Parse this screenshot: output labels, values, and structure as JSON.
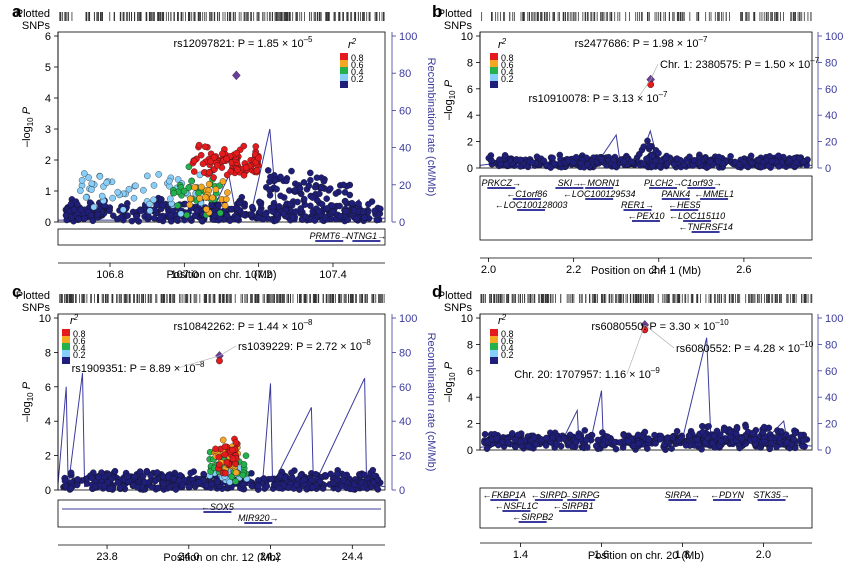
{
  "figure": {
    "colors": {
      "navy": "#1f1f7a",
      "light_blue": "#87cefa",
      "green": "#22b14c",
      "orange": "#f5a623",
      "red": "#e41a1c",
      "purple": "#6a3d9a",
      "rate_line": "#3b3b9e",
      "axis_right": "#3b3b9e"
    },
    "plotted_snps_label": [
      "Plotted",
      "SNPs"
    ],
    "ylabel_left": "–log10 P",
    "ylabel_right": "Recombination rate (cM/Mb)",
    "legend": {
      "title": "r2",
      "levels": [
        {
          "label": "0.8",
          "color": "#e41a1c"
        },
        {
          "label": "0.6",
          "color": "#f5a623"
        },
        {
          "label": "0.4",
          "color": "#22b14c"
        },
        {
          "label": "0.2",
          "color": "#87cefa"
        },
        {
          "label": "",
          "color": "#1f1f7a"
        }
      ]
    }
  },
  "chart_data": [
    {
      "panel": "a",
      "type": "scatter",
      "xlabel": "Position on chr. 1 (Mb)",
      "xlim": [
        106.66,
        107.54
      ],
      "xticks": [
        "106.8",
        "107.0",
        "107.2",
        "107.4"
      ],
      "xtick_values": [
        106.8,
        107.0,
        107.2,
        107.4
      ],
      "ylim": [
        0,
        6
      ],
      "yticks": [
        0,
        1,
        2,
        3,
        4,
        5,
        6
      ],
      "ylim_right": [
        0,
        100
      ],
      "yticks_right": [
        0,
        20,
        40,
        60,
        80,
        100
      ],
      "lead_snp": {
        "x": 107.14,
        "y": 4.73
      },
      "annotations": [
        {
          "text": "rs12097821: P = 1.85 × 10–5",
          "anchor": "top-center"
        }
      ],
      "genes": [
        {
          "label": "PRMT6→",
          "x": 107.39,
          "row": 0
        },
        {
          "label": "NTNG1→",
          "x": 107.49,
          "row": 0
        }
      ],
      "clusters": [
        {
          "x_range": [
            106.68,
            107.53
          ],
          "y_mean": 0.3,
          "y_spread": 0.35,
          "n": 420,
          "r2_class": "navy"
        },
        {
          "x_range": [
            106.72,
            107.05
          ],
          "y_mean": 1.0,
          "y_spread": 0.55,
          "n": 60,
          "r2_class": "light_blue"
        },
        {
          "x_range": [
            106.96,
            107.1
          ],
          "y_mean": 1.0,
          "y_spread": 0.7,
          "n": 30,
          "r2_class": "green"
        },
        {
          "x_range": [
            107.0,
            107.12
          ],
          "y_mean": 0.8,
          "y_spread": 0.6,
          "n": 20,
          "r2_class": "orange"
        },
        {
          "x_range": [
            107.02,
            107.2
          ],
          "y_mean": 1.9,
          "y_spread": 0.45,
          "n": 95,
          "r2_class": "red"
        },
        {
          "x_range": [
            107.22,
            107.45
          ],
          "y_mean": 1.1,
          "y_spread": 0.5,
          "n": 70,
          "r2_class": "navy"
        }
      ],
      "recomb": [
        [
          106.66,
          1
        ],
        [
          106.9,
          1
        ],
        [
          107.03,
          5
        ],
        [
          107.08,
          8
        ],
        [
          107.12,
          25
        ],
        [
          107.14,
          3
        ],
        [
          107.18,
          5
        ],
        [
          107.23,
          50
        ],
        [
          107.25,
          3
        ],
        [
          107.3,
          6
        ],
        [
          107.34,
          3
        ],
        [
          107.38,
          8
        ],
        [
          107.42,
          4
        ],
        [
          107.47,
          12
        ],
        [
          107.49,
          2
        ],
        [
          107.54,
          2
        ]
      ],
      "snp_ticks": 260
    },
    {
      "panel": "b",
      "type": "scatter",
      "xlabel": "Position on chr. 1 (Mb)",
      "xlim": [
        1.98,
        2.76
      ],
      "xticks": [
        "2.0",
        "2.2",
        "2.4",
        "2.6"
      ],
      "xtick_values": [
        2.0,
        2.2,
        2.4,
        2.6
      ],
      "ylim": [
        0,
        10
      ],
      "yticks": [
        0,
        2,
        4,
        6,
        8,
        10
      ],
      "ylim_right": [
        0,
        100
      ],
      "yticks_right": [
        0,
        20,
        40,
        60,
        80,
        100
      ],
      "lead_snp": {
        "x": 2.381,
        "y": 6.7
      },
      "annotations": [
        {
          "text": "rs2477686: P = 1.98 × 10–7",
          "anchor": "top-center"
        },
        {
          "text": "Chr. 1: 2380575: P = 1.50 × 10–7",
          "anchor": "right"
        },
        {
          "text": "rs10910078: P = 3.13 × 10–7",
          "anchor": "left"
        }
      ],
      "genes": [
        {
          "label": "PRKCZ→",
          "x": 2.03,
          "row": 0
        },
        {
          "label": "SKI→",
          "x": 2.19,
          "row": 0
        },
        {
          "label": "←MORN1",
          "x": 2.26,
          "row": 0
        },
        {
          "label": "PLCH2→",
          "x": 2.41,
          "row": 0
        },
        {
          "label": "C1orf93→",
          "x": 2.5,
          "row": 0
        },
        {
          "label": "←C1orf86",
          "x": 2.09,
          "row": 1
        },
        {
          "label": "←LOC100129534",
          "x": 2.26,
          "row": 1
        },
        {
          "label": "PANK4",
          "x": 2.44,
          "row": 1
        },
        {
          "label": "←MMEL1",
          "x": 2.53,
          "row": 1
        },
        {
          "label": "←LOC100128003",
          "x": 2.1,
          "row": 2
        },
        {
          "label": "RER1→",
          "x": 2.35,
          "row": 2
        },
        {
          "label": "←HES5",
          "x": 2.46,
          "row": 2
        },
        {
          "label": "←PEX10",
          "x": 2.37,
          "row": 3
        },
        {
          "label": "←LOC115110",
          "x": 2.49,
          "row": 3
        },
        {
          "label": "←TNFRSF14",
          "x": 2.51,
          "row": 4
        }
      ],
      "clusters": [
        {
          "x_range": [
            2.0,
            2.75
          ],
          "y_mean": 0.45,
          "y_spread": 0.45,
          "n": 420,
          "r2_class": "navy"
        },
        {
          "x_range": [
            2.36,
            2.4
          ],
          "y_mean": 1.5,
          "y_spread": 0.9,
          "n": 10,
          "r2_class": "navy"
        }
      ],
      "recomb": [
        [
          1.98,
          2
        ],
        [
          2.05,
          5
        ],
        [
          2.1,
          3
        ],
        [
          2.2,
          4
        ],
        [
          2.26,
          6
        ],
        [
          2.3,
          25
        ],
        [
          2.31,
          2
        ],
        [
          2.36,
          10
        ],
        [
          2.38,
          28
        ],
        [
          2.4,
          3
        ],
        [
          2.45,
          6
        ],
        [
          2.5,
          4
        ],
        [
          2.55,
          3
        ],
        [
          2.62,
          5
        ],
        [
          2.7,
          3
        ],
        [
          2.76,
          2
        ]
      ],
      "snp_ticks": 180
    },
    {
      "panel": "c",
      "type": "scatter",
      "xlabel": "Position on chr. 12 (Mb)",
      "xlim": [
        23.68,
        24.48
      ],
      "xticks": [
        "23.8",
        "24.0",
        "24.2",
        "24.4"
      ],
      "xtick_values": [
        23.8,
        24.0,
        24.2,
        24.4
      ],
      "ylim": [
        0,
        10
      ],
      "yticks": [
        0,
        2,
        4,
        6,
        8,
        10
      ],
      "ylim_right": [
        0,
        100
      ],
      "yticks_right": [
        0,
        20,
        40,
        60,
        80,
        100
      ],
      "lead_snp": {
        "x": 24.075,
        "y": 7.8
      },
      "annotations": [
        {
          "text": "rs10842262: P = 1.44 × 10–8",
          "anchor": "top-center"
        },
        {
          "text": "rs1039229: P = 2.72 × 10–8",
          "anchor": "right"
        },
        {
          "text": "rs1909351: P = 8.89 × 10–8",
          "anchor": "left"
        }
      ],
      "genes": [
        {
          "label": "←SOX5",
          "x": 24.07,
          "row": 0
        },
        {
          "label": "MIR920→",
          "x": 24.17,
          "row": 1
        }
      ],
      "clusters": [
        {
          "x_range": [
            23.69,
            24.47
          ],
          "y_mean": 0.5,
          "y_spread": 0.5,
          "n": 500,
          "r2_class": "navy"
        },
        {
          "x_range": [
            24.04,
            24.15
          ],
          "y_mean": 0.9,
          "y_spread": 0.6,
          "n": 25,
          "r2_class": "light_blue"
        },
        {
          "x_range": [
            24.05,
            24.14
          ],
          "y_mean": 1.3,
          "y_spread": 0.7,
          "n": 35,
          "r2_class": "green"
        },
        {
          "x_range": [
            24.06,
            24.13
          ],
          "y_mean": 1.8,
          "y_spread": 0.8,
          "n": 30,
          "r2_class": "orange"
        },
        {
          "x_range": [
            24.06,
            24.12
          ],
          "y_mean": 2.0,
          "y_spread": 1.0,
          "n": 28,
          "r2_class": "red"
        }
      ],
      "recomb": [
        [
          23.68,
          3
        ],
        [
          23.7,
          60
        ],
        [
          23.705,
          2
        ],
        [
          23.74,
          68
        ],
        [
          23.745,
          2
        ],
        [
          23.9,
          10
        ],
        [
          24.0,
          4
        ],
        [
          24.08,
          2
        ],
        [
          24.18,
          3
        ],
        [
          24.2,
          62
        ],
        [
          24.205,
          3
        ],
        [
          24.3,
          48
        ],
        [
          24.305,
          2
        ],
        [
          24.43,
          65
        ],
        [
          24.435,
          3
        ],
        [
          24.48,
          2
        ]
      ],
      "snp_ticks": 290
    },
    {
      "panel": "d",
      "type": "scatter",
      "xlabel": "Position on chr. 20 (Mb)",
      "xlim": [
        1.3,
        2.12
      ],
      "xticks": [
        "1.4",
        "1.6",
        "1.8",
        "2.0"
      ],
      "xtick_values": [
        1.4,
        1.6,
        1.8,
        2.0
      ],
      "ylim": [
        0,
        10
      ],
      "yticks": [
        0,
        2,
        4,
        6,
        8,
        10
      ],
      "ylim_right": [
        0,
        100
      ],
      "yticks_right": [
        0,
        20,
        40,
        60,
        80,
        100
      ],
      "lead_snp": {
        "x": 1.707,
        "y": 9.48
      },
      "annotations": [
        {
          "text": "rs6080550: P = 3.30 × 10–10",
          "anchor": "top-center"
        },
        {
          "text": "rs6080552: P = 4.28 × 10–10",
          "anchor": "right"
        },
        {
          "text": "Chr. 20: 1707957: 1.16 × 10–9",
          "anchor": "left"
        }
      ],
      "genes": [
        {
          "label": "←FKBP1A",
          "x": 1.36,
          "row": 0
        },
        {
          "label": "←SIRPD",
          "x": 1.47,
          "row": 0
        },
        {
          "label": "←SIRPG",
          "x": 1.55,
          "row": 0
        },
        {
          "label": "SIRPA→",
          "x": 1.8,
          "row": 0
        },
        {
          "label": "←PDYN",
          "x": 1.91,
          "row": 0
        },
        {
          "label": "STK35→",
          "x": 2.02,
          "row": 0
        },
        {
          "label": "←NSFL1C",
          "x": 1.39,
          "row": 1
        },
        {
          "label": "←SIRPB1",
          "x": 1.53,
          "row": 1
        },
        {
          "label": "←SIRPB2",
          "x": 1.43,
          "row": 2
        }
      ],
      "clusters": [
        {
          "x_range": [
            1.31,
            2.11
          ],
          "y_mean": 0.7,
          "y_spread": 0.55,
          "n": 460,
          "r2_class": "navy"
        },
        {
          "x_range": [
            1.84,
            2.08
          ],
          "y_mean": 1.4,
          "y_spread": 0.6,
          "n": 60,
          "r2_class": "navy"
        }
      ],
      "recomb": [
        [
          1.3,
          2
        ],
        [
          1.35,
          4
        ],
        [
          1.42,
          3
        ],
        [
          1.5,
          5
        ],
        [
          1.54,
          30
        ],
        [
          1.545,
          2
        ],
        [
          1.57,
          2
        ],
        [
          1.6,
          45
        ],
        [
          1.605,
          3
        ],
        [
          1.7,
          6
        ],
        [
          1.8,
          8
        ],
        [
          1.86,
          85
        ],
        [
          1.87,
          10
        ],
        [
          1.92,
          4
        ],
        [
          2.0,
          6
        ],
        [
          2.05,
          22
        ],
        [
          2.06,
          4
        ],
        [
          2.12,
          3
        ]
      ],
      "snp_ticks": 260
    }
  ]
}
